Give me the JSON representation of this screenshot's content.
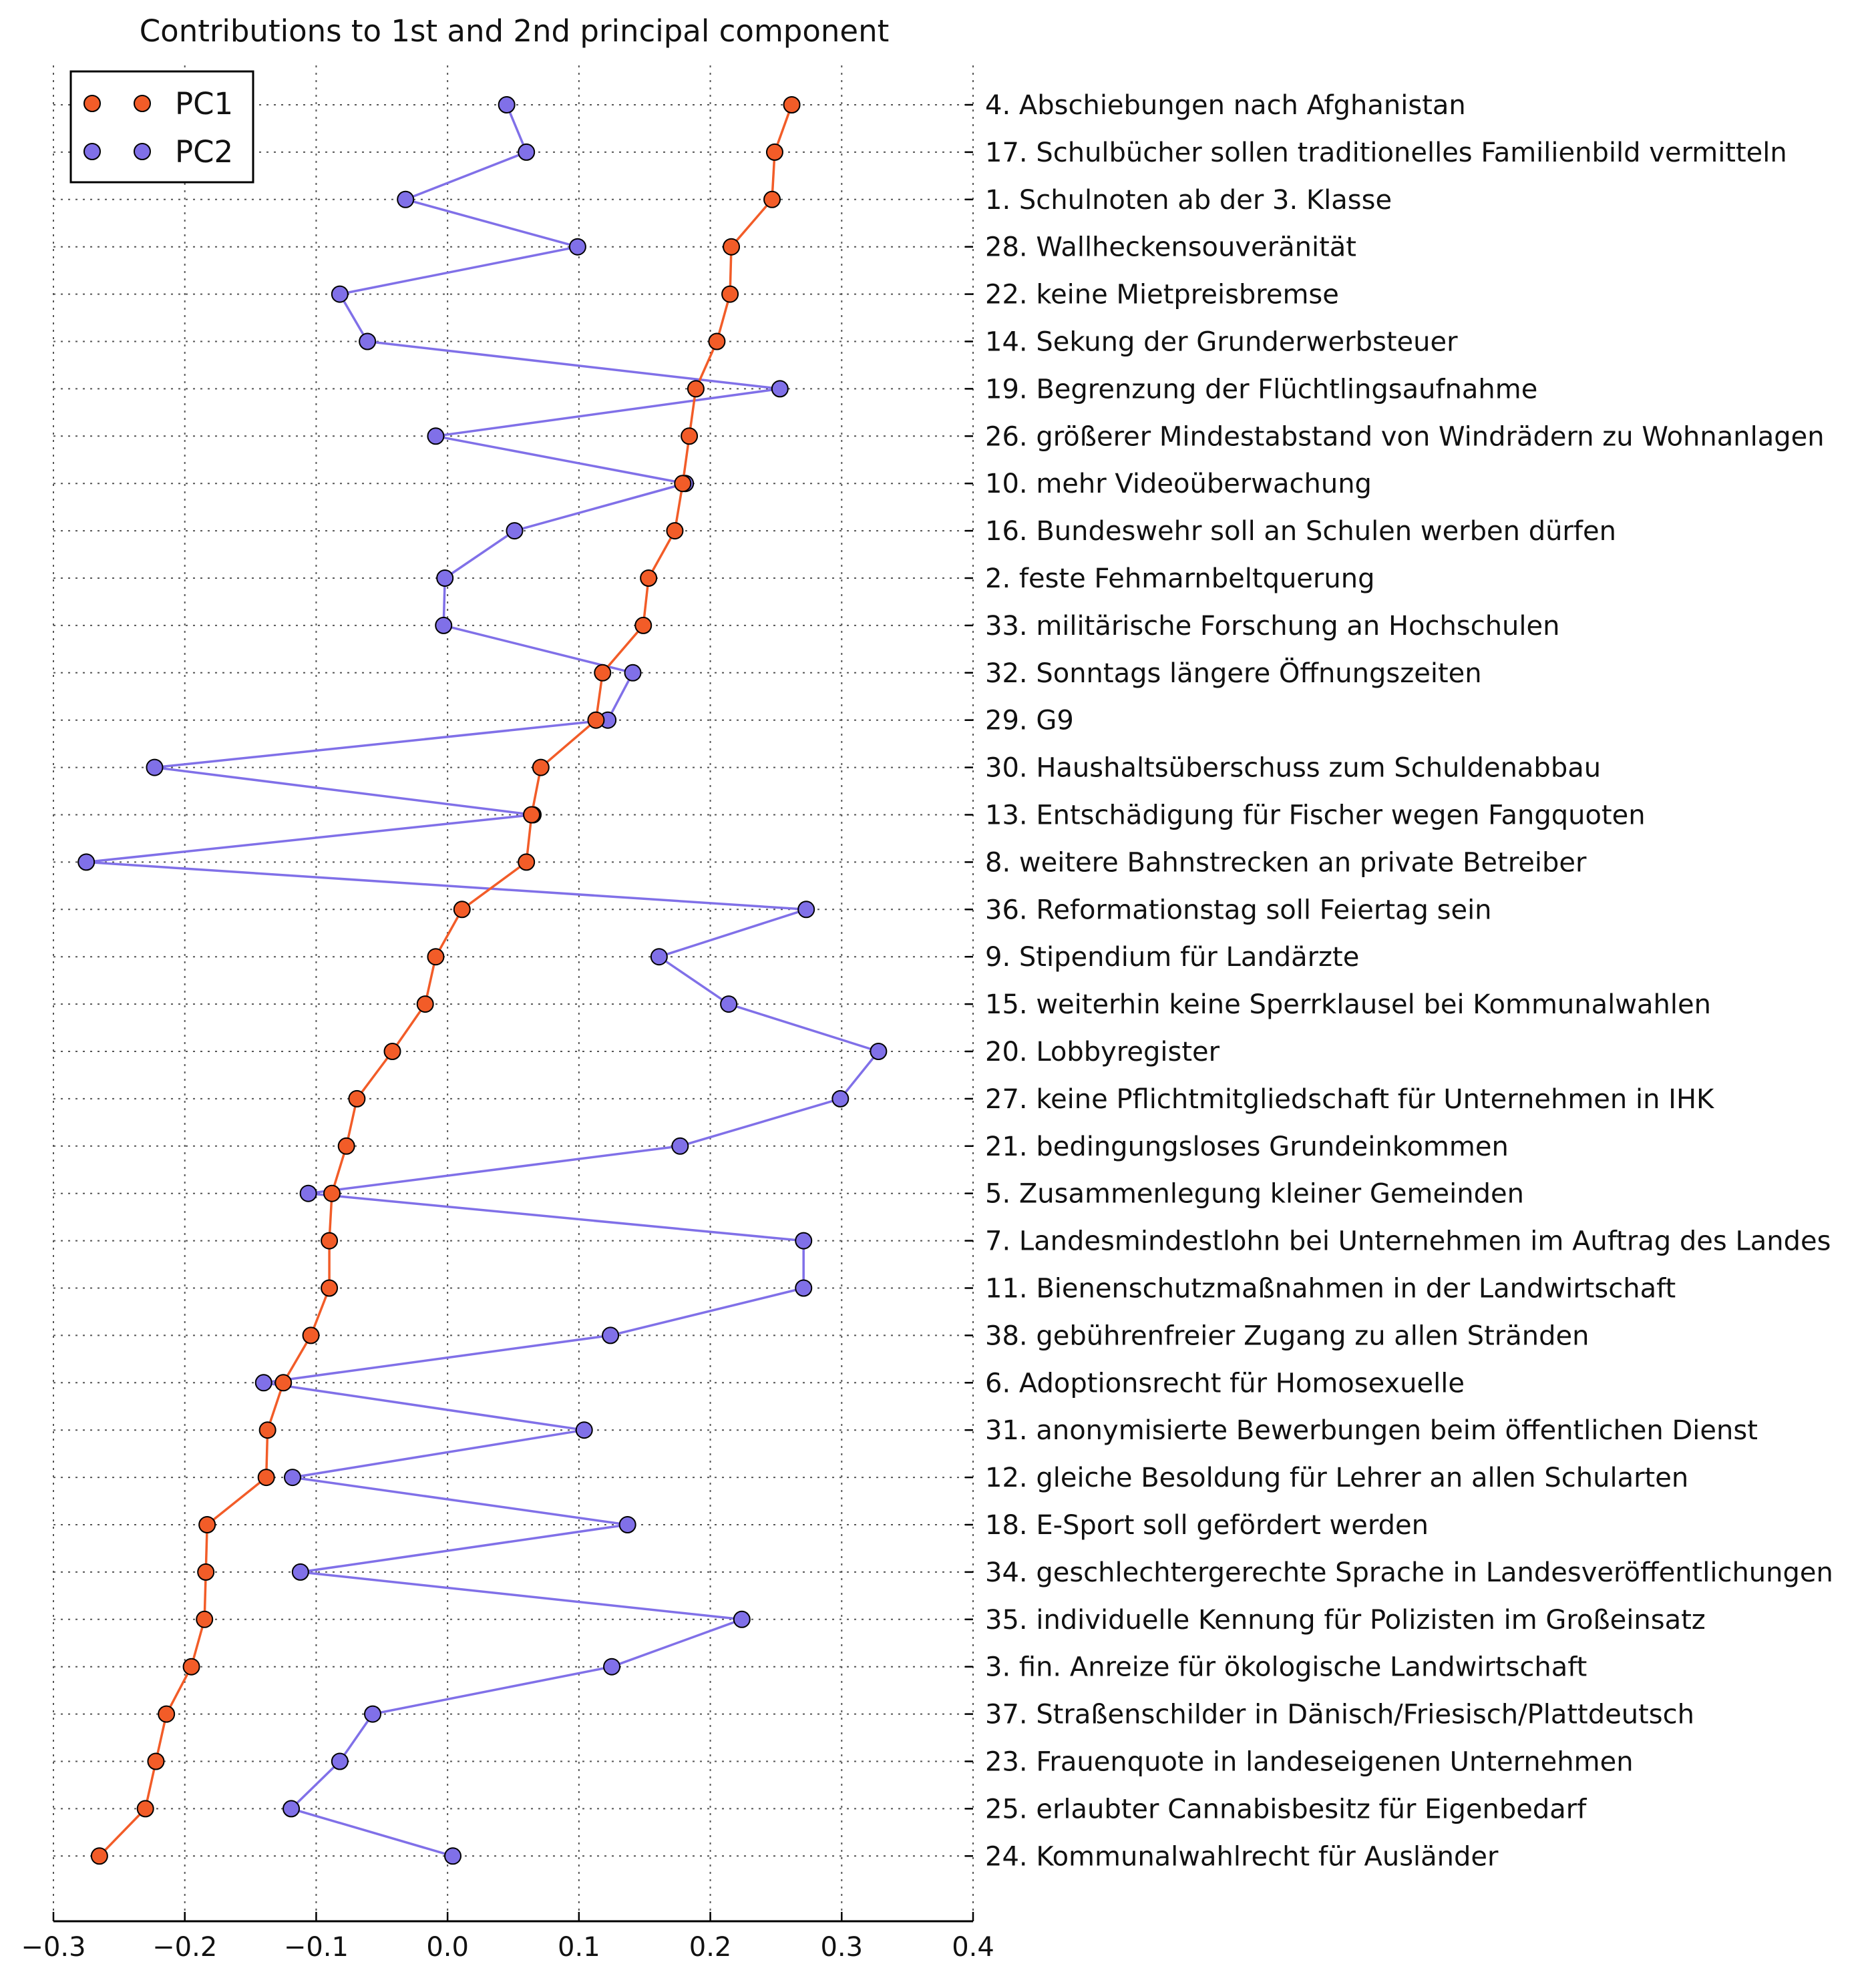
{
  "chart_data": {
    "type": "line",
    "title": "Contributions to 1st and 2nd principal component",
    "xlabel": "",
    "ylabel": "",
    "xlim": [
      -0.3,
      0.4
    ],
    "x_ticks": [
      "−0.3",
      "−0.2",
      "−0.1",
      "0.0",
      "0.1",
      "0.2",
      "0.3",
      "0.4"
    ],
    "x_tick_values": [
      -0.3,
      -0.2,
      -0.1,
      0.0,
      0.1,
      0.2,
      0.3,
      0.4
    ],
    "grid": true,
    "legend_position": "top-left",
    "categories": [
      "4. Abschiebungen nach Afghanistan",
      "17. Schulbücher sollen traditionelles Familienbild vermitteln",
      "1. Schulnoten ab der 3. Klasse",
      "28. Wallheckensouveränität",
      "22. keine Mietpreisbremse",
      "14. Sekung der Grunderwerbsteuer",
      "19. Begrenzung der Flüchtlingsaufnahme",
      "26. größerer Mindestabstand von Windrädern zu Wohnanlagen",
      "10. mehr Videoüberwachung",
      "16. Bundeswehr soll an Schulen werben dürfen",
      "2. feste Fehmarnbeltquerung",
      "33. militärische Forschung an Hochschulen",
      "32. Sonntags längere Öffnungszeiten",
      "29. G9",
      "30. Haushaltsüberschuss zum Schuldenabbau",
      "13. Entschädigung für Fischer wegen Fangquoten",
      "8. weitere Bahnstrecken an private Betreiber",
      "36. Reformationstag soll Feiertag sein",
      "9. Stipendium für Landärzte",
      "15. weiterhin keine Sperrklausel bei Kommunalwahlen",
      "20. Lobbyregister",
      "27. keine Pflichtmitgliedschaft für Unternehmen in IHK",
      "21. bedingungsloses Grundeinkommen",
      "5. Zusammenlegung kleiner Gemeinden",
      "7. Landesmindestlohn bei Unternehmen im Auftrag des Landes",
      "11. Bienenschutzmaßnahmen in der Landwirtschaft",
      "38. gebührenfreier Zugang zu allen Stränden",
      "6. Adoptionsrecht für Homosexuelle",
      "31. anonymisierte Bewerbungen beim öffentlichen Dienst",
      "12. gleiche Besoldung für Lehrer an allen Schularten",
      "18. E-Sport soll gefördert werden",
      "34. geschlechtergerechte Sprache in Landesveröffentlichungen",
      "35. individuelle Kennung für Polizisten im Großeinsatz",
      "3. fin. Anreize für ökologische Landwirtschaft",
      "37. Straßenschilder in Dänisch/Friesisch/Plattdeutsch",
      "23. Frauenquote in landeseigenen Unternehmen",
      "25. erlaubter Cannabisbesitz für Eigenbedarf",
      "24. Kommunalwahlrecht für Ausländer"
    ],
    "series": [
      {
        "name": "PC1",
        "color": "#f25c28",
        "values": [
          0.262,
          0.249,
          0.247,
          0.216,
          0.215,
          0.205,
          0.189,
          0.184,
          0.179,
          0.173,
          0.153,
          0.149,
          0.118,
          0.113,
          0.071,
          0.064,
          0.06,
          0.011,
          -0.009,
          -0.017,
          -0.042,
          -0.069,
          -0.077,
          -0.088,
          -0.09,
          -0.09,
          -0.104,
          -0.125,
          -0.137,
          -0.138,
          -0.183,
          -0.184,
          -0.185,
          -0.195,
          -0.214,
          -0.222,
          -0.23,
          -0.265
        ]
      },
      {
        "name": "PC2",
        "color": "#8070e8",
        "values": [
          0.045,
          0.06,
          -0.032,
          0.099,
          -0.082,
          -0.061,
          0.253,
          -0.009,
          0.181,
          0.051,
          -0.002,
          -0.003,
          0.141,
          0.122,
          -0.223,
          0.065,
          -0.275,
          0.273,
          0.161,
          0.214,
          0.328,
          0.299,
          0.177,
          -0.106,
          0.271,
          0.271,
          0.124,
          -0.14,
          0.104,
          -0.118,
          0.137,
          -0.112,
          0.224,
          0.125,
          -0.057,
          -0.082,
          -0.119,
          0.004
        ]
      }
    ]
  }
}
